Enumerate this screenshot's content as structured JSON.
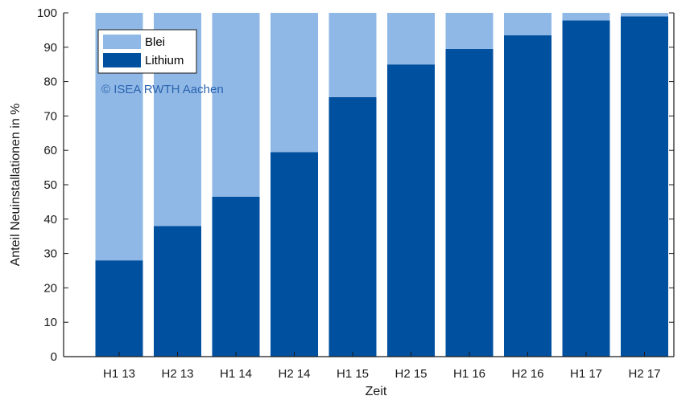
{
  "chart_data": {
    "type": "bar",
    "stacked": true,
    "categories": [
      "H1 13",
      "H2 13",
      "H1 14",
      "H2 14",
      "H1 15",
      "H2 15",
      "H1 16",
      "H2 16",
      "H1 17",
      "H2 17"
    ],
    "series": [
      {
        "name": "Lithium",
        "values": [
          28,
          38,
          46.5,
          59.5,
          75.5,
          85,
          89.5,
          93.5,
          97.8,
          99
        ],
        "color": "#0050a0"
      },
      {
        "name": "Blei",
        "values": [
          72,
          62,
          53.5,
          40.5,
          24.5,
          15,
          10.5,
          6.5,
          2.2,
          1
        ],
        "color": "#90b8e6"
      }
    ],
    "xlabel": "Zeit",
    "ylabel": "Anteil Neuinstallationen in %",
    "ylim": [
      0,
      100
    ],
    "yticks": [
      0,
      10,
      20,
      30,
      40,
      50,
      60,
      70,
      80,
      90,
      100
    ],
    "grid": false,
    "legend": {
      "placement": "top-left",
      "entries": [
        "Blei",
        "Lithium"
      ]
    },
    "annotation": {
      "text": "© ISEA RWTH Aachen",
      "color": "#2a64b0"
    }
  }
}
